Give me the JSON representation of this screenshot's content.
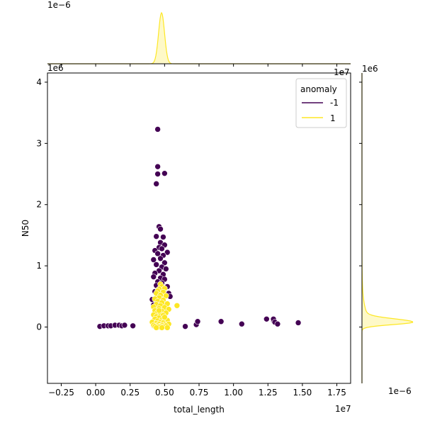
{
  "chart_data": {
    "type": "scatter",
    "title": "",
    "xlabel": "total_length",
    "ylabel": "N50",
    "x_offset_label": "1e7",
    "y_offset_label": "1e6",
    "top_marginal_offset_label": "1e−6",
    "right_marginal_offset_label": "1e−6",
    "top_marginal_right_label": "1e7",
    "right_marginal_top_label": "1e6",
    "xlim": [
      -0.35,
      1.85
    ],
    "ylim": [
      -0.92,
      4.15
    ],
    "xticks": [
      "−0.25",
      "0.00",
      "0.25",
      "0.50",
      "0.75",
      "1.00",
      "1.25",
      "1.50",
      "1.75"
    ],
    "xtick_values": [
      -0.25,
      0,
      0.25,
      0.5,
      0.75,
      1.0,
      1.25,
      1.5,
      1.75
    ],
    "yticks": [
      "0",
      "1",
      "2",
      "3",
      "4"
    ],
    "ytick_values": [
      0,
      1,
      2,
      3,
      4
    ],
    "legend": {
      "title": "anomaly",
      "placement": "top-right",
      "entries": [
        {
          "label": "-1",
          "color": "#440154"
        },
        {
          "label": "1",
          "color": "#fde725"
        }
      ]
    },
    "series": [
      {
        "name": "-1",
        "color": "#440154",
        "points": [
          [
            0.03,
            0.01
          ],
          [
            0.06,
            0.02
          ],
          [
            0.09,
            0.02
          ],
          [
            0.11,
            0.02
          ],
          [
            0.14,
            0.03
          ],
          [
            0.17,
            0.03
          ],
          [
            0.19,
            0.02
          ],
          [
            0.21,
            0.03
          ],
          [
            0.27,
            0.02
          ],
          [
            0.45,
            3.23
          ],
          [
            0.45,
            2.62
          ],
          [
            0.45,
            2.5
          ],
          [
            0.5,
            2.51
          ],
          [
            0.44,
            2.34
          ],
          [
            0.46,
            1.64
          ],
          [
            0.47,
            1.6
          ],
          [
            0.44,
            1.48
          ],
          [
            0.49,
            1.47
          ],
          [
            0.47,
            1.38
          ],
          [
            0.5,
            1.34
          ],
          [
            0.46,
            1.3
          ],
          [
            0.43,
            1.25
          ],
          [
            0.48,
            1.28
          ],
          [
            0.52,
            1.22
          ],
          [
            0.45,
            1.2
          ],
          [
            0.49,
            1.17
          ],
          [
            0.42,
            1.1
          ],
          [
            0.47,
            1.12
          ],
          [
            0.5,
            1.05
          ],
          [
            0.44,
            1.02
          ],
          [
            0.48,
            0.98
          ],
          [
            0.51,
            0.95
          ],
          [
            0.46,
            0.92
          ],
          [
            0.43,
            0.88
          ],
          [
            0.49,
            0.86
          ],
          [
            0.42,
            0.82
          ],
          [
            0.47,
            0.8
          ],
          [
            0.5,
            0.78
          ],
          [
            0.45,
            0.74
          ],
          [
            0.48,
            0.72
          ],
          [
            0.44,
            0.68
          ],
          [
            0.52,
            0.66
          ],
          [
            0.46,
            0.62
          ],
          [
            0.43,
            0.58
          ],
          [
            0.49,
            0.57
          ],
          [
            0.53,
            0.55
          ],
          [
            0.54,
            0.5
          ],
          [
            0.41,
            0.45
          ],
          [
            0.47,
            0.44
          ],
          [
            0.44,
            0.4
          ],
          [
            0.51,
            0.38
          ],
          [
            0.42,
            0.36
          ],
          [
            0.46,
            0.33
          ],
          [
            0.49,
            0.3
          ],
          [
            0.43,
            0.26
          ],
          [
            0.48,
            0.22
          ],
          [
            0.45,
            0.18
          ],
          [
            0.5,
            0.14
          ],
          [
            0.44,
            0.1
          ],
          [
            0.47,
            0.06
          ],
          [
            0.52,
            0.04
          ],
          [
            0.42,
            0.02
          ],
          [
            0.49,
            0.01
          ],
          [
            0.46,
            0.03
          ],
          [
            0.65,
            0.01
          ],
          [
            0.73,
            0.04
          ],
          [
            0.74,
            0.09
          ],
          [
            0.91,
            0.09
          ],
          [
            1.06,
            0.05
          ],
          [
            1.24,
            0.13
          ],
          [
            1.29,
            0.11
          ],
          [
            1.29,
            0.13
          ],
          [
            1.3,
            0.08
          ],
          [
            1.32,
            0.05
          ],
          [
            1.47,
            0.07
          ]
        ]
      },
      {
        "name": "1",
        "color": "#fde725",
        "points": [
          [
            0.47,
            0.7
          ],
          [
            0.48,
            0.66
          ],
          [
            0.46,
            0.62
          ],
          [
            0.5,
            0.63
          ],
          [
            0.45,
            0.59
          ],
          [
            0.49,
            0.57
          ],
          [
            0.44,
            0.55
          ],
          [
            0.47,
            0.52
          ],
          [
            0.51,
            0.51
          ],
          [
            0.46,
            0.48
          ],
          [
            0.43,
            0.46
          ],
          [
            0.49,
            0.44
          ],
          [
            0.45,
            0.42
          ],
          [
            0.48,
            0.4
          ],
          [
            0.52,
            0.38
          ],
          [
            0.44,
            0.37
          ],
          [
            0.47,
            0.35
          ],
          [
            0.42,
            0.33
          ],
          [
            0.5,
            0.32
          ],
          [
            0.46,
            0.3
          ],
          [
            0.53,
            0.29
          ],
          [
            0.59,
            0.35
          ],
          [
            0.43,
            0.27
          ],
          [
            0.48,
            0.26
          ],
          [
            0.45,
            0.24
          ],
          [
            0.51,
            0.23
          ],
          [
            0.47,
            0.21
          ],
          [
            0.42,
            0.2
          ],
          [
            0.49,
            0.19
          ],
          [
            0.44,
            0.17
          ],
          [
            0.46,
            0.15
          ],
          [
            0.5,
            0.14
          ],
          [
            0.43,
            0.13
          ],
          [
            0.48,
            0.12
          ],
          [
            0.52,
            0.11
          ],
          [
            0.45,
            0.1
          ],
          [
            0.47,
            0.08
          ],
          [
            0.41,
            0.08
          ],
          [
            0.49,
            0.07
          ],
          [
            0.44,
            0.06
          ],
          [
            0.46,
            0.05
          ],
          [
            0.5,
            0.04
          ],
          [
            0.53,
            0.05
          ],
          [
            0.42,
            0.03
          ],
          [
            0.48,
            0.03
          ],
          [
            0.45,
            0.02
          ],
          [
            0.51,
            0.02
          ],
          [
            0.47,
            0.01
          ],
          [
            0.43,
            0.01
          ],
          [
            0.49,
            0.0
          ],
          [
            0.46,
            0.0
          ],
          [
            0.44,
            -0.01
          ],
          [
            0.52,
            -0.01
          ],
          [
            0.48,
            -0.01
          ],
          [
            0.5,
            0.16
          ],
          [
            0.46,
            0.27
          ]
        ]
      }
    ],
    "marginal_x": {
      "peak_value": 0.478,
      "color": "#fde725"
    },
    "marginal_y": {
      "peak_value": 0.08,
      "color": "#fde725"
    }
  }
}
